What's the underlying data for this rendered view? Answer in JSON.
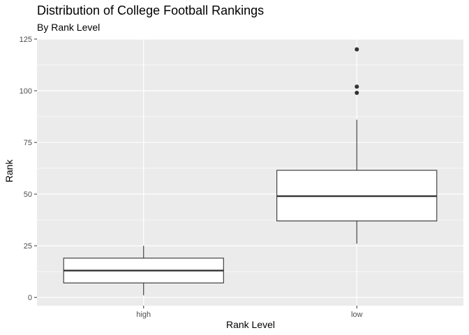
{
  "chart_data": {
    "type": "boxplot",
    "title": "Distribution of College Football Rankings",
    "subtitle": "By Rank Level",
    "xlabel": "Rank Level",
    "ylabel": "Rank",
    "categories": [
      "high",
      "low"
    ],
    "ylim": [
      -4,
      125
    ],
    "yticks": [
      0,
      25,
      50,
      75,
      100,
      125
    ],
    "grid": true,
    "legend": "none",
    "boxes": [
      {
        "category": "high",
        "whisker_low": 1,
        "q1": 7,
        "median": 13,
        "q3": 19,
        "whisker_high": 25,
        "outliers": []
      },
      {
        "category": "low",
        "whisker_low": 26,
        "q1": 37,
        "median": 49,
        "q3": 61.5,
        "whisker_high": 86,
        "outliers": [
          99,
          102,
          120
        ]
      }
    ],
    "colors": {
      "panel": "#ebebeb",
      "grid_major": "#ffffff",
      "box_fill": "#ffffff",
      "box_line": "#333333",
      "tick_text": "#4d4d4d"
    }
  }
}
